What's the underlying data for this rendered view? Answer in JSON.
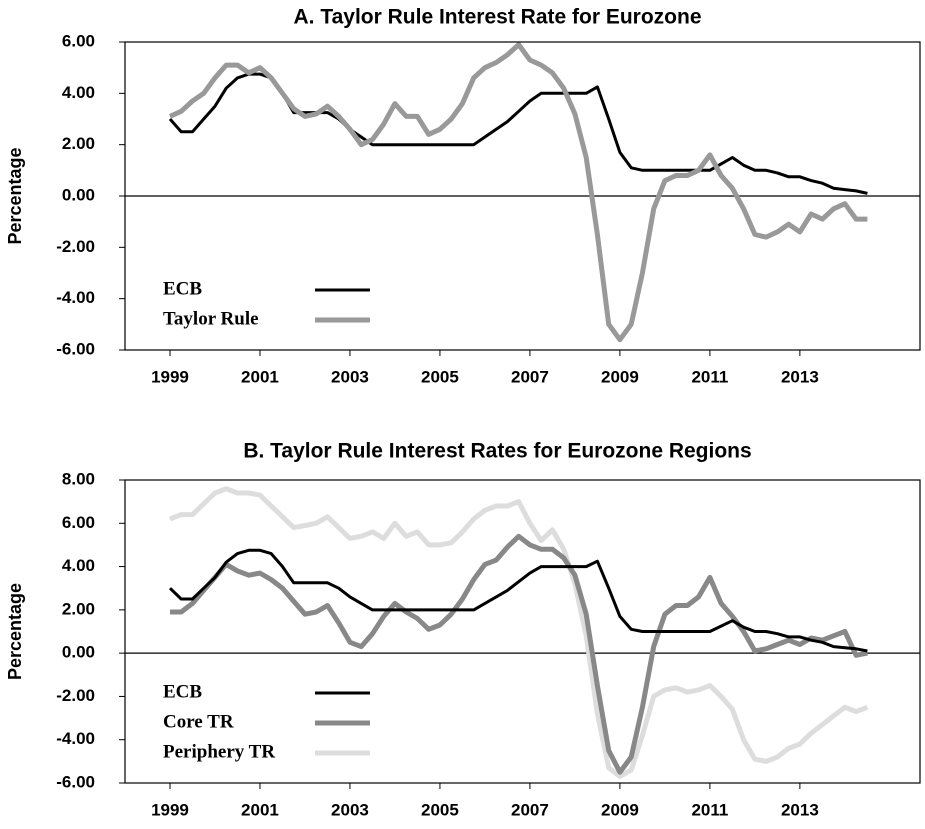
{
  "chart_data": [
    {
      "type": "line",
      "title": "A. Taylor Rule Interest Rate for Eurozone",
      "y_label": "Percentage",
      "x": [
        1999,
        1999.25,
        1999.5,
        1999.75,
        2000,
        2000.25,
        2000.5,
        2000.75,
        2001,
        2001.25,
        2001.5,
        2001.75,
        2002,
        2002.25,
        2002.5,
        2002.75,
        2003,
        2003.25,
        2003.5,
        2003.75,
        2004,
        2004.25,
        2004.5,
        2004.75,
        2005,
        2005.25,
        2005.5,
        2005.75,
        2006,
        2006.25,
        2006.5,
        2006.75,
        2007,
        2007.25,
        2007.5,
        2007.75,
        2008,
        2008.25,
        2008.5,
        2008.75,
        2009,
        2009.25,
        2009.5,
        2009.75,
        2010,
        2010.25,
        2010.5,
        2010.75,
        2011,
        2011.25,
        2011.5,
        2011.75,
        2012,
        2012.25,
        2012.5,
        2012.75,
        2013,
        2013.25,
        2013.5,
        2013.75,
        2014,
        2014.25,
        2014.5
      ],
      "series": [
        {
          "name": "ECB",
          "color": "#000000",
          "values": [
            3.0,
            2.5,
            2.5,
            3.0,
            3.5,
            4.2,
            4.6,
            4.75,
            4.75,
            4.6,
            4.0,
            3.25,
            3.25,
            3.25,
            3.25,
            3.0,
            2.6,
            2.3,
            2.0,
            2.0,
            2.0,
            2.0,
            2.0,
            2.0,
            2.0,
            2.0,
            2.0,
            2.0,
            2.3,
            2.6,
            2.9,
            3.3,
            3.7,
            4.0,
            4.0,
            4.0,
            4.0,
            4.0,
            4.25,
            3.0,
            1.7,
            1.1,
            1.0,
            1.0,
            1.0,
            1.0,
            1.0,
            1.0,
            1.0,
            1.25,
            1.5,
            1.2,
            1.0,
            1.0,
            0.9,
            0.75,
            0.75,
            0.6,
            0.5,
            0.3,
            0.25,
            0.2,
            0.1
          ]
        },
        {
          "name": "Taylor Rule",
          "color": "#999999",
          "values": [
            3.1,
            3.3,
            3.7,
            4.0,
            4.6,
            5.1,
            5.1,
            4.8,
            5.0,
            4.6,
            4.0,
            3.4,
            3.1,
            3.2,
            3.5,
            3.1,
            2.6,
            2.0,
            2.2,
            2.8,
            3.6,
            3.1,
            3.1,
            2.4,
            2.6,
            3.0,
            3.6,
            4.6,
            5.0,
            5.2,
            5.5,
            5.9,
            5.3,
            5.1,
            4.8,
            4.2,
            3.2,
            1.5,
            -1.5,
            -5.0,
            -5.6,
            -5.0,
            -3.0,
            -0.5,
            0.6,
            0.8,
            0.8,
            1.0,
            1.6,
            0.8,
            0.3,
            -0.5,
            -1.5,
            -1.6,
            -1.4,
            -1.1,
            -1.4,
            -0.7,
            -0.9,
            -0.5,
            -0.3,
            -0.9,
            -0.9
          ]
        }
      ],
      "xlim": [
        1998,
        2015.67
      ],
      "xticks": [
        1999,
        2001,
        2003,
        2005,
        2007,
        2009,
        2011,
        2013
      ],
      "ylim": [
        -6,
        6
      ],
      "yticks": [
        {
          "value": -6,
          "label": "-6.00"
        },
        {
          "value": -4,
          "label": "-4.00"
        },
        {
          "value": -2,
          "label": "-2.00"
        },
        {
          "value": 0,
          "label": "0.00"
        },
        {
          "value": 2,
          "label": "2.00"
        },
        {
          "value": 4,
          "label": "4.00"
        },
        {
          "value": 6,
          "label": "6.00"
        }
      ],
      "zero_line": true,
      "legend": "lower-left"
    },
    {
      "type": "line",
      "title": "B. Taylor Rule Interest Rates for Eurozone Regions",
      "y_label": "Percentage",
      "x": [
        1999,
        1999.25,
        1999.5,
        1999.75,
        2000,
        2000.25,
        2000.5,
        2000.75,
        2001,
        2001.25,
        2001.5,
        2001.75,
        2002,
        2002.25,
        2002.5,
        2002.75,
        2003,
        2003.25,
        2003.5,
        2003.75,
        2004,
        2004.25,
        2004.5,
        2004.75,
        2005,
        2005.25,
        2005.5,
        2005.75,
        2006,
        2006.25,
        2006.5,
        2006.75,
        2007,
        2007.25,
        2007.5,
        2007.75,
        2008,
        2008.25,
        2008.5,
        2008.75,
        2009,
        2009.25,
        2009.5,
        2009.75,
        2010,
        2010.25,
        2010.5,
        2010.75,
        2011,
        2011.25,
        2011.5,
        2011.75,
        2012,
        2012.25,
        2012.5,
        2012.75,
        2013,
        2013.25,
        2013.5,
        2013.75,
        2014,
        2014.25,
        2014.5
      ],
      "series": [
        {
          "name": "Periphery TR",
          "color": "#dddddd",
          "values": [
            6.2,
            6.4,
            6.4,
            6.9,
            7.4,
            7.6,
            7.4,
            7.4,
            7.3,
            6.8,
            6.3,
            5.8,
            5.9,
            6.0,
            6.3,
            5.8,
            5.3,
            5.4,
            5.6,
            5.3,
            6.0,
            5.4,
            5.6,
            5.0,
            5.0,
            5.1,
            5.6,
            6.2,
            6.6,
            6.8,
            6.8,
            7.0,
            6.0,
            5.2,
            5.7,
            4.8,
            3.2,
            0.8,
            -2.8,
            -5.3,
            -5.7,
            -5.4,
            -3.8,
            -2.0,
            -1.7,
            -1.6,
            -1.8,
            -1.7,
            -1.5,
            -2.0,
            -2.6,
            -4.0,
            -4.9,
            -5.0,
            -4.8,
            -4.4,
            -4.2,
            -3.7,
            -3.3,
            -2.9,
            -2.5,
            -2.7,
            -2.5
          ]
        },
        {
          "name": "Core TR",
          "color": "#888888",
          "values": [
            1.9,
            1.9,
            2.3,
            2.9,
            3.5,
            4.1,
            3.8,
            3.6,
            3.7,
            3.4,
            3.0,
            2.4,
            1.8,
            1.9,
            2.2,
            1.4,
            0.5,
            0.3,
            0.9,
            1.7,
            2.3,
            1.9,
            1.6,
            1.1,
            1.3,
            1.8,
            2.5,
            3.4,
            4.1,
            4.3,
            4.9,
            5.4,
            5.0,
            4.8,
            4.8,
            4.4,
            3.6,
            1.8,
            -1.5,
            -4.5,
            -5.5,
            -4.8,
            -2.5,
            0.3,
            1.8,
            2.2,
            2.2,
            2.6,
            3.5,
            2.3,
            1.7,
            1.0,
            0.1,
            0.2,
            0.4,
            0.6,
            0.4,
            0.7,
            0.6,
            0.8,
            1.0,
            -0.1,
            0.0
          ]
        },
        {
          "name": "ECB",
          "color": "#000000",
          "values": [
            3.0,
            2.5,
            2.5,
            3.0,
            3.5,
            4.2,
            4.6,
            4.75,
            4.75,
            4.6,
            4.0,
            3.25,
            3.25,
            3.25,
            3.25,
            3.0,
            2.6,
            2.3,
            2.0,
            2.0,
            2.0,
            2.0,
            2.0,
            2.0,
            2.0,
            2.0,
            2.0,
            2.0,
            2.3,
            2.6,
            2.9,
            3.3,
            3.7,
            4.0,
            4.0,
            4.0,
            4.0,
            4.0,
            4.25,
            3.0,
            1.7,
            1.1,
            1.0,
            1.0,
            1.0,
            1.0,
            1.0,
            1.0,
            1.0,
            1.25,
            1.5,
            1.2,
            1.0,
            1.0,
            0.9,
            0.75,
            0.75,
            0.6,
            0.5,
            0.3,
            0.25,
            0.2,
            0.1
          ]
        }
      ],
      "xlim": [
        1998,
        2015.67
      ],
      "xticks": [
        1999,
        2001,
        2003,
        2005,
        2007,
        2009,
        2011,
        2013
      ],
      "ylim": [
        -6,
        8
      ],
      "yticks": [
        {
          "value": -6,
          "label": "-6.00"
        },
        {
          "value": -4,
          "label": "-4.00"
        },
        {
          "value": -2,
          "label": "-2.00"
        },
        {
          "value": 0,
          "label": "0.00"
        },
        {
          "value": 2,
          "label": "2.00"
        },
        {
          "value": 4,
          "label": "4.00"
        },
        {
          "value": 6,
          "label": "6.00"
        },
        {
          "value": 8,
          "label": "8.00"
        }
      ],
      "zero_line": true,
      "legend": "lower-left"
    }
  ]
}
